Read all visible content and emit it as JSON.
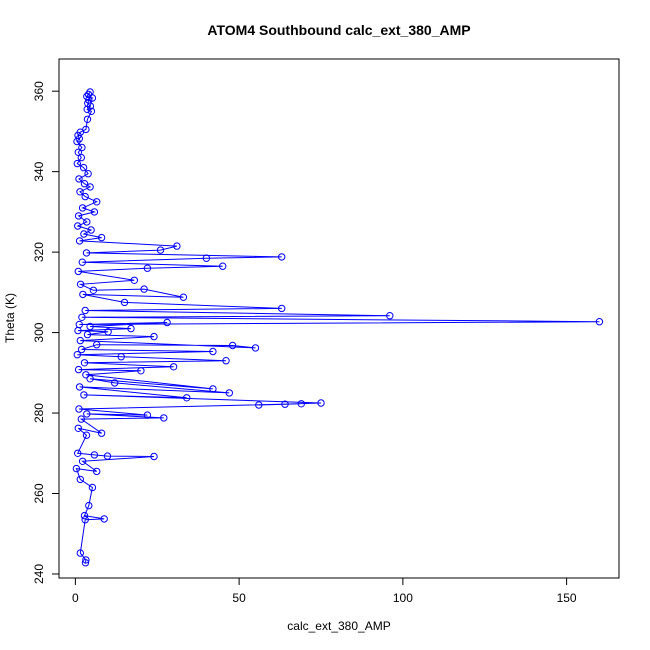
{
  "chart_data": {
    "type": "line",
    "title": "ATOM4 Southbound calc_ext_380_AMP",
    "xlabel": "calc_ext_380_AMP",
    "ylabel": "Theta (K)",
    "xlim": [
      -5,
      166
    ],
    "ylim": [
      239,
      368
    ],
    "xticks": [
      0,
      50,
      100,
      150
    ],
    "yticks": [
      240,
      260,
      280,
      300,
      320,
      340,
      360
    ],
    "grid": false,
    "legend": "none",
    "color": "#0000ff",
    "marker": "open-circle",
    "series": [
      {
        "values": [
          [
            4.5,
            359.8
          ],
          [
            4.0,
            359.2
          ],
          [
            3.5,
            358.7
          ],
          [
            5.2,
            358.3
          ],
          [
            4.1,
            357.8
          ],
          [
            3.8,
            357.0
          ],
          [
            4.6,
            356.3
          ],
          [
            3.6,
            355.5
          ],
          [
            4.9,
            355.0
          ],
          [
            3.7,
            353.0
          ],
          [
            3.2,
            350.5
          ],
          [
            1.5,
            349.8
          ],
          [
            0.8,
            349.0
          ],
          [
            1.2,
            348.2
          ],
          [
            0.5,
            347.5
          ],
          [
            2.0,
            346.0
          ],
          [
            0.9,
            344.8
          ],
          [
            1.8,
            343.5
          ],
          [
            0.6,
            342.0
          ],
          [
            2.5,
            341.0
          ],
          [
            3.9,
            339.5
          ],
          [
            1.1,
            338.2
          ],
          [
            2.8,
            337.0
          ],
          [
            4.5,
            336.2
          ],
          [
            1.4,
            335.0
          ],
          [
            3.0,
            333.8
          ],
          [
            6.5,
            332.5
          ],
          [
            2.2,
            331.0
          ],
          [
            5.8,
            330.0
          ],
          [
            1.0,
            329.0
          ],
          [
            3.5,
            327.5
          ],
          [
            0.7,
            326.5
          ],
          [
            4.8,
            325.5
          ],
          [
            2.6,
            324.5
          ],
          [
            8.0,
            323.6
          ],
          [
            1.3,
            322.8
          ],
          [
            31.0,
            321.5
          ],
          [
            26.0,
            320.5
          ],
          [
            3.4,
            319.8
          ],
          [
            63.0,
            318.8
          ],
          [
            40.0,
            318.5
          ],
          [
            2.1,
            317.5
          ],
          [
            45.0,
            316.5
          ],
          [
            22.0,
            316.0
          ],
          [
            0.9,
            315.2
          ],
          [
            18.0,
            313.0
          ],
          [
            1.6,
            312.0
          ],
          [
            5.5,
            310.5
          ],
          [
            21.0,
            310.8
          ],
          [
            33.0,
            308.8
          ],
          [
            2.3,
            309.5
          ],
          [
            15.0,
            307.5
          ],
          [
            63.0,
            306.0
          ],
          [
            3.0,
            305.5
          ],
          [
            96.0,
            304.2
          ],
          [
            2.0,
            303.8
          ],
          [
            160.0,
            302.7
          ],
          [
            1.2,
            302.0
          ],
          [
            28.0,
            302.5
          ],
          [
            4.5,
            301.5
          ],
          [
            17.0,
            301.0
          ],
          [
            0.8,
            300.5
          ],
          [
            10.0,
            300.2
          ],
          [
            3.7,
            299.5
          ],
          [
            24.0,
            299.0
          ],
          [
            1.5,
            298.0
          ],
          [
            55.0,
            296.2
          ],
          [
            48.0,
            296.8
          ],
          [
            6.5,
            297.0
          ],
          [
            1.9,
            295.8
          ],
          [
            42.0,
            295.3
          ],
          [
            0.6,
            294.5
          ],
          [
            14.0,
            294.0
          ],
          [
            46.0,
            293.0
          ],
          [
            2.8,
            292.5
          ],
          [
            30.0,
            291.5
          ],
          [
            1.0,
            290.8
          ],
          [
            20.0,
            290.5
          ],
          [
            3.2,
            289.5
          ],
          [
            42.0,
            286.0
          ],
          [
            4.5,
            288.5
          ],
          [
            12.0,
            287.5
          ],
          [
            47.0,
            285.0
          ],
          [
            1.3,
            286.5
          ],
          [
            34.0,
            283.8
          ],
          [
            2.6,
            284.5
          ],
          [
            75.0,
            282.5
          ],
          [
            56.0,
            282.0
          ],
          [
            64.0,
            282.2
          ],
          [
            69.0,
            282.3
          ],
          [
            1.1,
            281.0
          ],
          [
            22.0,
            279.5
          ],
          [
            3.5,
            279.8
          ],
          [
            27.0,
            278.8
          ],
          [
            1.8,
            278.5
          ],
          [
            8.0,
            275.0
          ],
          [
            0.9,
            276.2
          ],
          [
            3.4,
            274.5
          ],
          [
            0.7,
            270.0
          ],
          [
            5.8,
            269.6
          ],
          [
            9.8,
            269.3
          ],
          [
            24.0,
            269.2
          ],
          [
            2.2,
            268.0
          ],
          [
            6.5,
            265.5
          ],
          [
            0.3,
            266.2
          ],
          [
            1.5,
            263.5
          ],
          [
            5.2,
            261.5
          ],
          [
            4.1,
            257.0
          ],
          [
            2.8,
            254.5
          ],
          [
            8.8,
            253.7
          ],
          [
            3.0,
            253.5
          ],
          [
            1.5,
            245.2
          ],
          [
            3.2,
            243.5
          ],
          [
            3.1,
            242.8
          ]
        ]
      }
    ]
  }
}
